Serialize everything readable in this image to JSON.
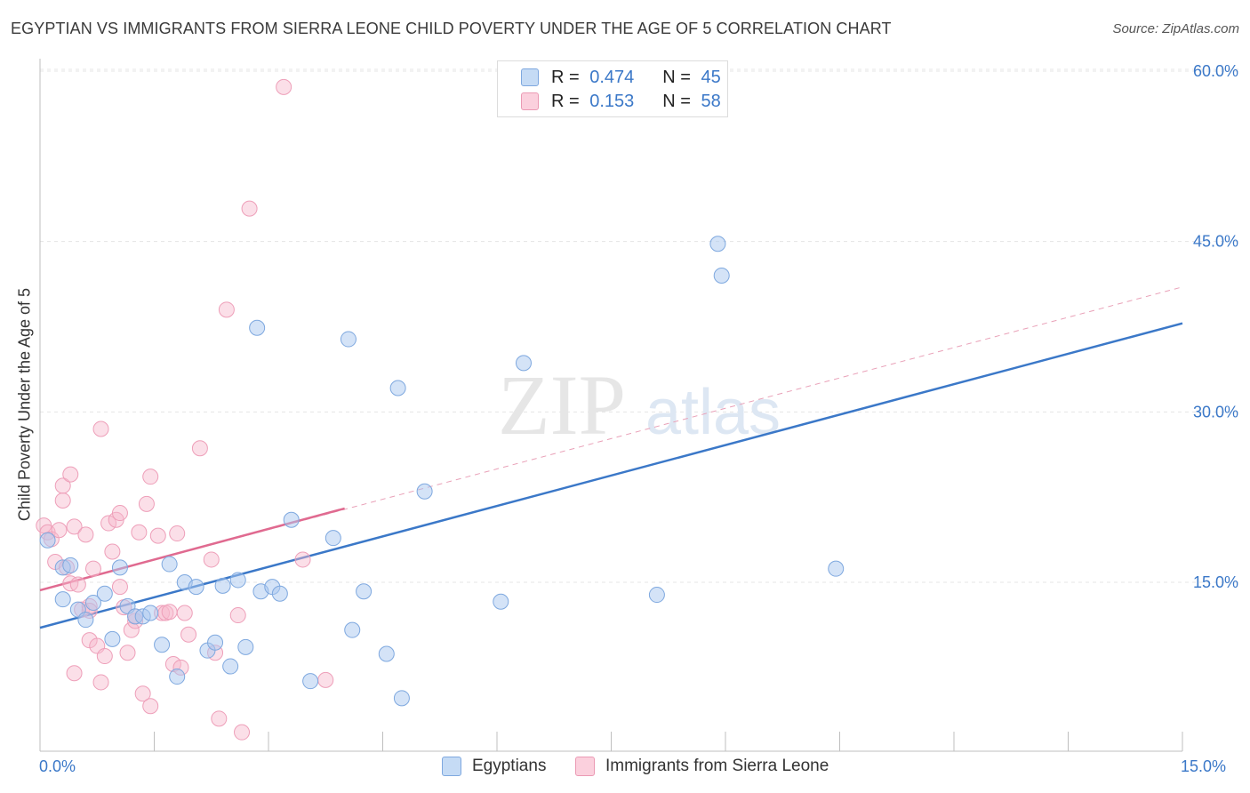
{
  "title": "EGYPTIAN VS IMMIGRANTS FROM SIERRA LEONE CHILD POVERTY UNDER THE AGE OF 5 CORRELATION CHART",
  "source": "Source: ZipAtlas.com",
  "watermark": {
    "zip": "ZIP",
    "atlas": "atlas"
  },
  "legend": {
    "rows": [
      {
        "r_label": "R =",
        "r_value": "0.474",
        "n_label": "N =",
        "n_value": "45",
        "color": "#a9c8f0"
      },
      {
        "r_label": "R =",
        "r_value": "0.153",
        "n_label": "N =",
        "n_value": "58",
        "color": "#f7b8cc"
      }
    ]
  },
  "bottom_legend": [
    {
      "label": "Egyptians",
      "color": "#a9c8f0"
    },
    {
      "label": "Immigrants from Sierra Leone",
      "color": "#f7b8cc"
    }
  ],
  "chart_data": {
    "type": "scatter",
    "title": "EGYPTIAN VS IMMIGRANTS FROM SIERRA LEONE CHILD POVERTY UNDER THE AGE OF 5 CORRELATION CHART",
    "xlabel": "",
    "ylabel": "Child Poverty Under the Age of 5",
    "xlim": [
      0,
      15
    ],
    "ylim": [
      0,
      61
    ],
    "x_tick_labels": [
      "0.0%",
      "15.0%"
    ],
    "y_tick_labels": [
      {
        "value": 15,
        "label": "15.0%"
      },
      {
        "value": 30,
        "label": "30.0%"
      },
      {
        "value": 45,
        "label": "45.0%"
      },
      {
        "value": 60,
        "label": "60.0%"
      }
    ],
    "grid": true,
    "colors": {
      "egyptians": "#3b78c8",
      "sierra_leone": "#e06a90",
      "egyptians_fill": "#a9c8f0",
      "sierra_leone_fill": "#f7b8cc",
      "tick_text": "#3b78c8"
    },
    "series": [
      {
        "name": "Egyptians",
        "points": [
          [
            0.1,
            18.7
          ],
          [
            0.3,
            16.3
          ],
          [
            0.4,
            16.5
          ],
          [
            0.3,
            13.5
          ],
          [
            0.5,
            12.6
          ],
          [
            0.6,
            11.7
          ],
          [
            0.7,
            13.2
          ],
          [
            0.85,
            14.0
          ],
          [
            0.95,
            10.0
          ],
          [
            1.05,
            16.3
          ],
          [
            1.15,
            12.9
          ],
          [
            1.25,
            12.0
          ],
          [
            1.35,
            12.0
          ],
          [
            1.45,
            12.3
          ],
          [
            1.6,
            9.5
          ],
          [
            1.7,
            16.6
          ],
          [
            1.8,
            6.7
          ],
          [
            1.9,
            15.0
          ],
          [
            2.05,
            14.6
          ],
          [
            2.2,
            9.0
          ],
          [
            2.3,
            9.7
          ],
          [
            2.4,
            14.7
          ],
          [
            2.5,
            7.6
          ],
          [
            2.6,
            15.2
          ],
          [
            2.7,
            9.3
          ],
          [
            2.9,
            14.2
          ],
          [
            2.85,
            37.4
          ],
          [
            3.05,
            14.6
          ],
          [
            3.15,
            14.0
          ],
          [
            3.3,
            20.5
          ],
          [
            3.55,
            6.3
          ],
          [
            3.85,
            18.9
          ],
          [
            4.05,
            36.4
          ],
          [
            4.1,
            10.8
          ],
          [
            4.25,
            14.2
          ],
          [
            4.55,
            8.7
          ],
          [
            4.7,
            32.1
          ],
          [
            4.75,
            4.8
          ],
          [
            5.05,
            23.0
          ],
          [
            6.05,
            13.3
          ],
          [
            6.35,
            34.3
          ],
          [
            8.1,
            13.9
          ],
          [
            8.9,
            44.8
          ],
          [
            8.95,
            42.0
          ],
          [
            10.45,
            16.2
          ]
        ],
        "trend": {
          "x": [
            0,
            15
          ],
          "y": [
            11.0,
            37.8
          ]
        }
      },
      {
        "name": "Immigrants from Sierra Leone",
        "points": [
          [
            0.05,
            20.0
          ],
          [
            0.1,
            19.4
          ],
          [
            0.15,
            18.8
          ],
          [
            0.2,
            16.8
          ],
          [
            0.25,
            19.6
          ],
          [
            0.3,
            22.2
          ],
          [
            0.3,
            23.5
          ],
          [
            0.35,
            16.3
          ],
          [
            0.4,
            14.9
          ],
          [
            0.45,
            19.9
          ],
          [
            0.5,
            14.8
          ],
          [
            0.4,
            24.5
          ],
          [
            0.45,
            7.0
          ],
          [
            0.55,
            12.6
          ],
          [
            0.6,
            19.2
          ],
          [
            0.65,
            9.9
          ],
          [
            0.65,
            12.9
          ],
          [
            0.7,
            16.2
          ],
          [
            0.75,
            9.4
          ],
          [
            0.8,
            6.2
          ],
          [
            0.85,
            8.5
          ],
          [
            0.8,
            28.5
          ],
          [
            0.9,
            20.2
          ],
          [
            0.95,
            17.7
          ],
          [
            1.0,
            20.5
          ],
          [
            1.05,
            21.1
          ],
          [
            1.05,
            14.6
          ],
          [
            1.1,
            12.8
          ],
          [
            1.15,
            8.8
          ],
          [
            1.2,
            10.8
          ],
          [
            1.25,
            11.6
          ],
          [
            1.3,
            19.4
          ],
          [
            1.35,
            5.2
          ],
          [
            1.4,
            21.9
          ],
          [
            1.45,
            24.3
          ],
          [
            1.45,
            4.1
          ],
          [
            1.55,
            19.1
          ],
          [
            1.6,
            12.3
          ],
          [
            1.65,
            12.3
          ],
          [
            1.7,
            12.4
          ],
          [
            1.75,
            7.8
          ],
          [
            1.8,
            19.3
          ],
          [
            1.85,
            7.5
          ],
          [
            1.9,
            12.3
          ],
          [
            1.95,
            10.4
          ],
          [
            2.1,
            26.8
          ],
          [
            2.25,
            17.0
          ],
          [
            2.3,
            8.8
          ],
          [
            2.35,
            3.0
          ],
          [
            2.45,
            39.0
          ],
          [
            2.6,
            12.1
          ],
          [
            2.65,
            1.8
          ],
          [
            2.75,
            47.9
          ],
          [
            3.45,
            17.0
          ],
          [
            3.2,
            58.6
          ],
          [
            3.75,
            6.4
          ],
          [
            1.25,
            12.0
          ],
          [
            0.65,
            12.5
          ]
        ],
        "trend": {
          "x": [
            0,
            4.0
          ],
          "y": [
            14.3,
            21.5
          ]
        },
        "trend_extended": {
          "x": [
            0,
            15
          ],
          "y": [
            14.3,
            41.0
          ]
        }
      }
    ]
  }
}
